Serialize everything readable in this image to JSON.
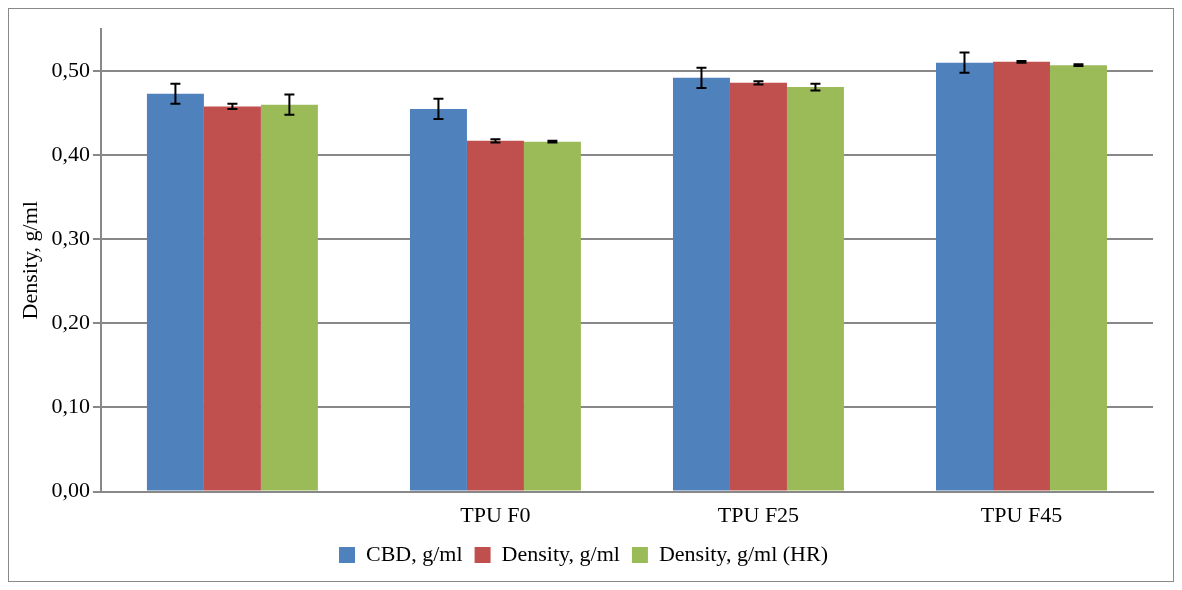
{
  "chart_data": {
    "type": "bar",
    "ylabel": "Density, g/ml",
    "categories": [
      null,
      "TPU F0",
      "TPU F25",
      "TPU F45"
    ],
    "series": [
      {
        "name": "CBD, g/ml",
        "color": "#4f81bd",
        "values": [
          0.473,
          0.455,
          0.492,
          0.51
        ],
        "errors": [
          0.012,
          0.012,
          0.012,
          0.012
        ]
      },
      {
        "name": "Density, g/ml",
        "color": "#c0504d",
        "values": [
          0.458,
          0.417,
          0.486,
          0.511
        ],
        "errors": [
          0.003,
          0.002,
          0.002,
          0.001
        ]
      },
      {
        "name": "Density, g/ml (HR)",
        "color": "#9bbb59",
        "values": [
          0.46,
          0.416,
          0.481,
          0.507
        ],
        "errors": [
          0.012,
          0.001,
          0.004,
          0.001
        ]
      }
    ],
    "ylim": [
      0,
      0.55
    ],
    "yticks": [
      {
        "value": 0,
        "label": "0,00"
      },
      {
        "value": 0.1,
        "label": "0,10"
      },
      {
        "value": 0.2,
        "label": "0,20"
      },
      {
        "value": 0.3,
        "label": "0,30"
      },
      {
        "value": 0.4,
        "label": "0,40"
      },
      {
        "value": 0.5,
        "label": "0,50"
      }
    ],
    "grid": "y",
    "legend": "bottom"
  }
}
